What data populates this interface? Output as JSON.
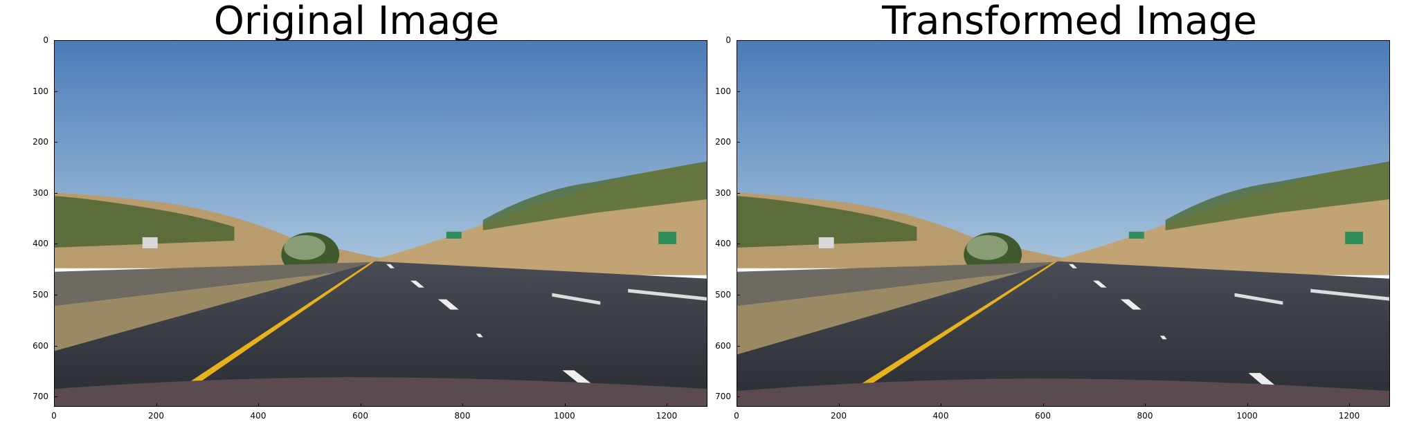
{
  "panels": [
    {
      "title": "Original Image",
      "y_ticks": [
        "0",
        "100",
        "200",
        "300",
        "400",
        "500",
        "600",
        "700"
      ],
      "x_ticks": [
        "0",
        "200",
        "400",
        "600",
        "800",
        "1000",
        "1200"
      ]
    },
    {
      "title": "Transformed Image",
      "y_ticks": [
        "0",
        "100",
        "200",
        "300",
        "400",
        "500",
        "600",
        "700"
      ],
      "x_ticks": [
        "0",
        "200",
        "400",
        "600",
        "800",
        "1000",
        "1200"
      ]
    }
  ],
  "colors": {
    "sky_top": "#4f7fb9",
    "sky_bottom": "#9dbdd9",
    "hill": "#b99a6a",
    "trees": "#3f5a2b",
    "road": "#3b3d45",
    "yellow_line": "#e6b21d",
    "white_line": "#f2f2f2",
    "hood": "#5b4b50"
  }
}
